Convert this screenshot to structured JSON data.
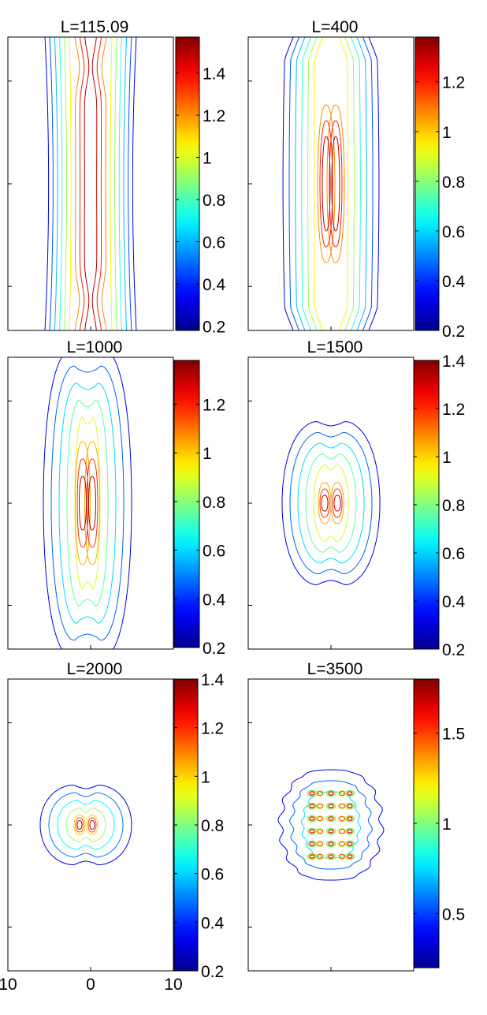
{
  "chart_data": [
    {
      "type": "contour",
      "title": "L=115.09",
      "colorbar_ticks": [
        "1.4",
        "1.2",
        "1",
        "0.8",
        "0.6",
        "0.4",
        "0.2"
      ],
      "colorbar_values": [
        1.4,
        1.2,
        1.0,
        0.8,
        0.6,
        0.4,
        0.2
      ],
      "colorbar_range": [
        0.18,
        1.57
      ],
      "pattern": "uniform-band",
      "level_count": 9
    },
    {
      "type": "contour",
      "title": "L=400",
      "colorbar_ticks": [
        "1.2",
        "1",
        "0.8",
        "0.6",
        "0.4",
        "0.2"
      ],
      "colorbar_values": [
        1.2,
        1.0,
        0.8,
        0.6,
        0.4,
        0.2
      ],
      "colorbar_range": [
        0.2,
        1.38
      ],
      "pattern": "band-with-twin-core",
      "level_count": 9
    },
    {
      "type": "contour",
      "title": "L=1000",
      "colorbar_ticks": [
        "1.2",
        "1",
        "0.8",
        "0.6",
        "0.4",
        "0.2"
      ],
      "colorbar_values": [
        1.2,
        1.0,
        0.8,
        0.6,
        0.4,
        0.2
      ],
      "colorbar_range": [
        0.2,
        1.38
      ],
      "pattern": "elongated-twin-lobe",
      "level_count": 8
    },
    {
      "type": "contour",
      "title": "L=1500",
      "colorbar_ticks": [
        "1.4",
        "1.2",
        "1",
        "0.8",
        "0.6",
        "0.4",
        "0.2"
      ],
      "colorbar_values": [
        1.4,
        1.2,
        1.0,
        0.8,
        0.6,
        0.4,
        0.2
      ],
      "colorbar_range": [
        0.2,
        1.4
      ],
      "pattern": "oval-twin-lobe",
      "level_count": 8
    },
    {
      "type": "contour",
      "title": "L=2000",
      "colorbar_ticks": [
        "1.4",
        "1.2",
        "1",
        "0.8",
        "0.6",
        "0.4",
        "0.2"
      ],
      "colorbar_values": [
        1.4,
        1.2,
        1.0,
        0.8,
        0.6,
        0.4,
        0.2
      ],
      "colorbar_range": [
        0.2,
        1.4
      ],
      "pattern": "compact-twin-lobe",
      "level_count": 7,
      "x_ticks": [
        "10",
        "0",
        "10"
      ],
      "x_values": [
        -10,
        0,
        10
      ]
    },
    {
      "type": "contour",
      "title": "L=3500",
      "colorbar_ticks": [
        "1.5",
        "1",
        "0.5"
      ],
      "colorbar_values": [
        1.5,
        1.0,
        0.5
      ],
      "colorbar_range": [
        0.2,
        1.8
      ],
      "pattern": "lattice-blob",
      "level_count": 8
    }
  ],
  "colormap": "jet",
  "colormap_stops": [
    "#00008f",
    "#0000ff",
    "#00ffff",
    "#ffff00",
    "#ff0000",
    "#800000"
  ]
}
